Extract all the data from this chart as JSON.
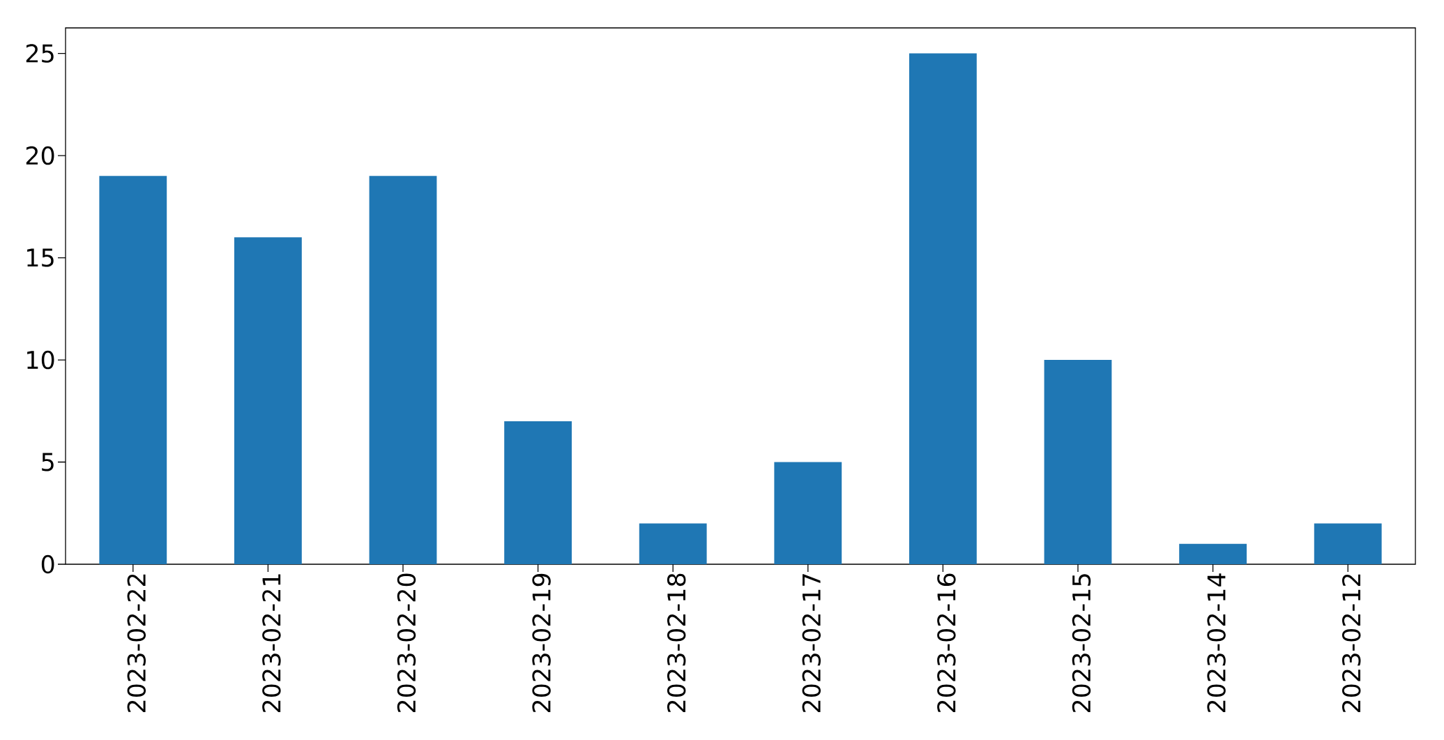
{
  "chart_data": {
    "type": "bar",
    "categories": [
      "2023-02-22",
      "2023-02-21",
      "2023-02-20",
      "2023-02-19",
      "2023-02-18",
      "2023-02-17",
      "2023-02-16",
      "2023-02-15",
      "2023-02-14",
      "2023-02-12"
    ],
    "values": [
      19,
      16,
      19,
      7,
      2,
      5,
      25,
      10,
      1,
      2
    ],
    "color": "#1f77b4",
    "ylim": [
      0,
      26.25
    ],
    "yticks": [
      0,
      5,
      10,
      15,
      20,
      25
    ]
  }
}
